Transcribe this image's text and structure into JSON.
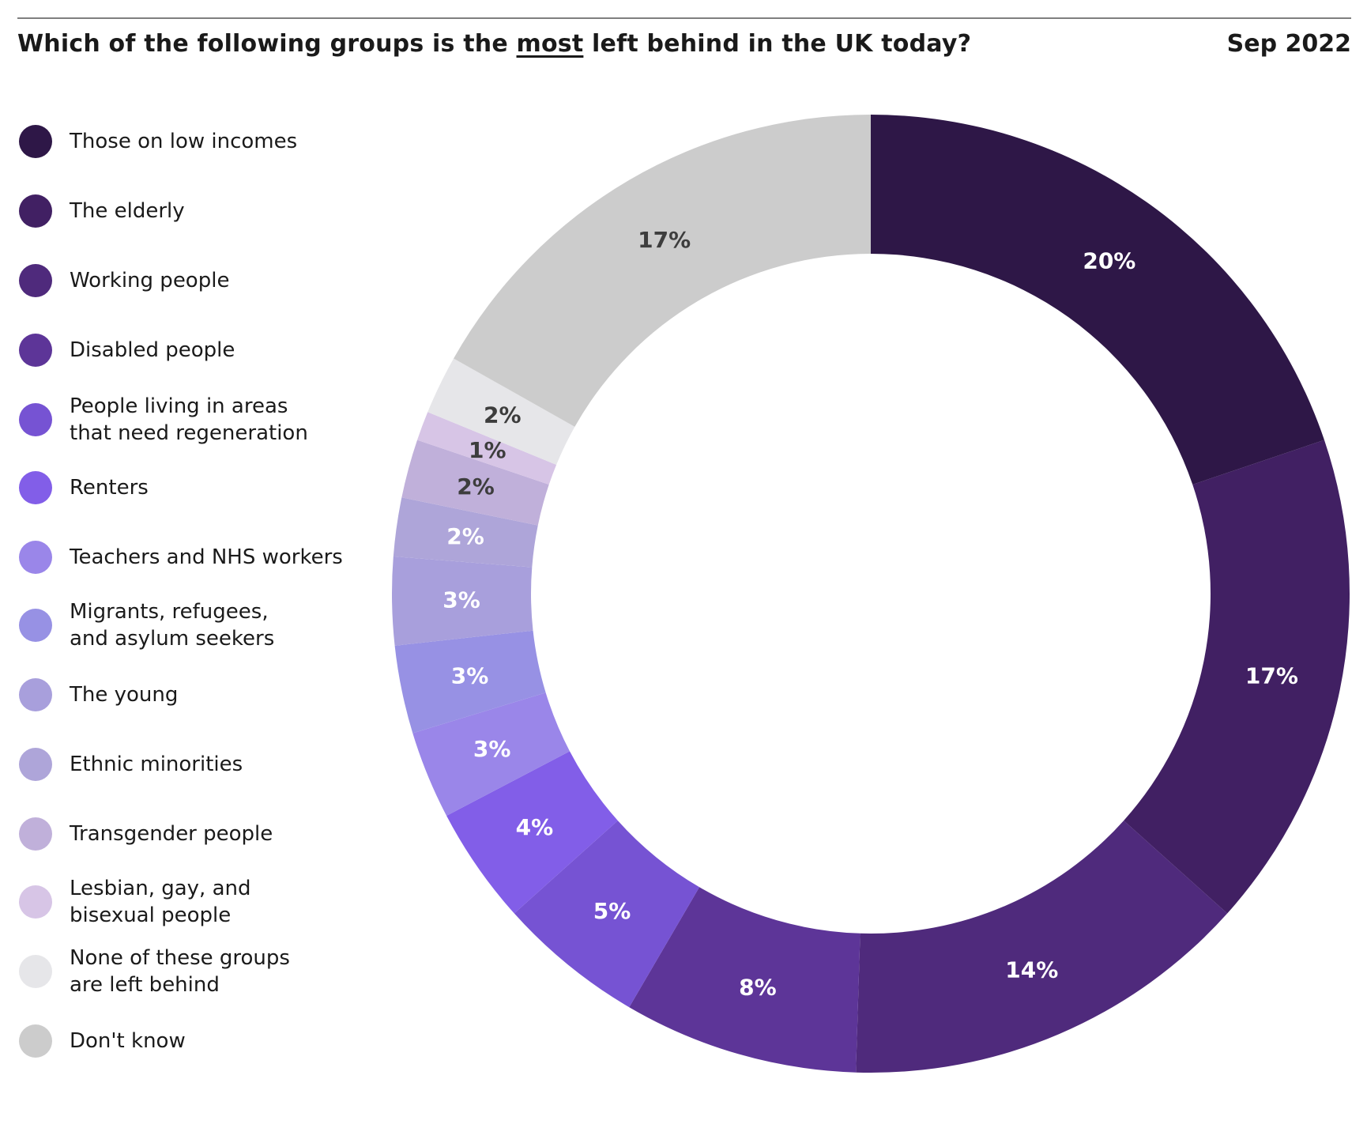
{
  "header": {
    "title_before": "Which of the following groups is the ",
    "title_emph": "most",
    "title_after": " left behind in the UK today?",
    "date": "Sep 2022"
  },
  "chart_data": {
    "type": "pie",
    "variant": "donut",
    "title": "Which of the following groups is the most left behind in the UK today?",
    "subtitle": "Sep 2022",
    "legend_position": "left",
    "categories": [
      "Those on low incomes",
      "The elderly",
      "Working people",
      "Disabled people",
      "People living in areas\nthat need regeneration",
      "Renters",
      "Teachers and NHS workers",
      "Migrants, refugees,\nand asylum seekers",
      "The young",
      "Ethnic minorities",
      "Transgender people",
      "Lesbian, gay, and\nbisexual people",
      "None of these groups\nare left behind",
      "Don't know"
    ],
    "values": [
      20,
      17,
      14,
      8,
      5,
      4,
      3,
      3,
      3,
      2,
      2,
      1,
      2,
      17
    ],
    "value_labels": [
      "20%",
      "17%",
      "14%",
      "8%",
      "5%",
      "4%",
      "3%",
      "3%",
      "3%",
      "2%",
      "2%",
      "1%",
      "2%",
      "17%"
    ],
    "colors": [
      "#2e1747",
      "#412063",
      "#4f2a7c",
      "#5d3598",
      "#7653d3",
      "#825ee8",
      "#9a86e9",
      "#9791e4",
      "#a89fdc",
      "#aea5d9",
      "#c0b0da",
      "#d7c5e6",
      "#e6e6e9",
      "#cccccc"
    ],
    "label_colors": [
      "#ffffff",
      "#ffffff",
      "#ffffff",
      "#ffffff",
      "#ffffff",
      "#ffffff",
      "#ffffff",
      "#ffffff",
      "#ffffff",
      "#ffffff",
      "#3d3d3d",
      "#3d3d3d",
      "#3d3d3d",
      "#3d3d3d"
    ]
  }
}
